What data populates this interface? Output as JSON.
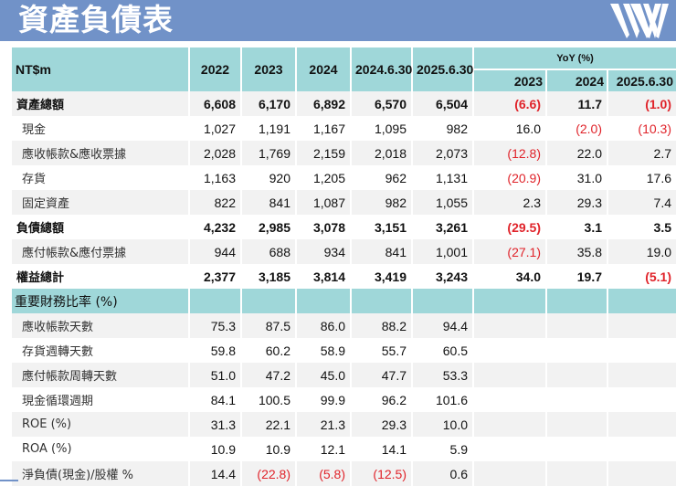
{
  "header": {
    "title": "資產負債表",
    "logo": "WW"
  },
  "table": {
    "unit_label": "NT$m",
    "columns": [
      "2022",
      "2023",
      "2024",
      "2024.6.30",
      "2025.6.30"
    ],
    "yoy_group_label": "YoY (%)",
    "yoy_columns": [
      "2023",
      "2024",
      "2025.6.30"
    ],
    "rows": [
      {
        "label": "資產總額",
        "bold": true,
        "indent": false,
        "values": [
          "6,608",
          "6,170",
          "6,892",
          "6,570",
          "6,504"
        ],
        "yoy": [
          "(6.6)",
          "11.7",
          "(1.0)"
        ]
      },
      {
        "label": "現金",
        "bold": false,
        "indent": true,
        "values": [
          "1,027",
          "1,191",
          "1,167",
          "1,095",
          "982"
        ],
        "yoy": [
          "16.0",
          "(2.0)",
          "(10.3)"
        ]
      },
      {
        "label": "應收帳款&應收票據",
        "bold": false,
        "indent": true,
        "values": [
          "2,028",
          "1,769",
          "2,159",
          "2,018",
          "2,073"
        ],
        "yoy": [
          "(12.8)",
          "22.0",
          "2.7"
        ]
      },
      {
        "label": "存貨",
        "bold": false,
        "indent": true,
        "values": [
          "1,163",
          "920",
          "1,205",
          "962",
          "1,131"
        ],
        "yoy": [
          "(20.9)",
          "31.0",
          "17.6"
        ]
      },
      {
        "label": "固定資產",
        "bold": false,
        "indent": true,
        "values": [
          "822",
          "841",
          "1,087",
          "982",
          "1,055"
        ],
        "yoy": [
          "2.3",
          "29.3",
          "7.4"
        ]
      },
      {
        "label": "負債總額",
        "bold": true,
        "indent": false,
        "values": [
          "4,232",
          "2,985",
          "3,078",
          "3,151",
          "3,261"
        ],
        "yoy": [
          "(29.5)",
          "3.1",
          "3.5"
        ]
      },
      {
        "label": "應付帳款&應付票據",
        "bold": false,
        "indent": true,
        "values": [
          "944",
          "688",
          "934",
          "841",
          "1,001"
        ],
        "yoy": [
          "(27.1)",
          "35.8",
          "19.0"
        ]
      },
      {
        "label": "權益總計",
        "bold": true,
        "indent": false,
        "values": [
          "2,377",
          "3,185",
          "3,814",
          "3,419",
          "3,243"
        ],
        "yoy": [
          "34.0",
          "19.7",
          "(5.1)"
        ]
      }
    ],
    "ratio_section_label": "重要財務比率 (%)",
    "ratio_rows": [
      {
        "label": "應收帳款天數",
        "values": [
          "75.3",
          "87.5",
          "86.0",
          "88.2",
          "94.4"
        ]
      },
      {
        "label": "存貨週轉天數",
        "values": [
          "59.8",
          "60.2",
          "58.9",
          "55.7",
          "60.5"
        ]
      },
      {
        "label": "應付帳款周轉天數",
        "values": [
          "51.0",
          "47.2",
          "45.0",
          "47.7",
          "53.3"
        ]
      },
      {
        "label": "現金循環週期",
        "values": [
          "84.1",
          "100.5",
          "99.9",
          "96.2",
          "101.6"
        ]
      },
      {
        "label": "ROE (%)",
        "values": [
          "31.3",
          "22.1",
          "21.3",
          "29.3",
          "10.0"
        ]
      },
      {
        "label": "ROA (%)",
        "values": [
          "10.9",
          "10.9",
          "12.1",
          "14.1",
          "5.9"
        ]
      },
      {
        "label": "淨負債(現金)/股權 %",
        "values": [
          "14.4",
          "(22.8)",
          "(5.8)",
          "(12.5)",
          "0.6"
        ]
      }
    ]
  },
  "colors": {
    "banner": "#7192c8",
    "header_fill": "#9fd7d9",
    "row_shade": "#f2f2f2",
    "negative": "#e0232a"
  }
}
